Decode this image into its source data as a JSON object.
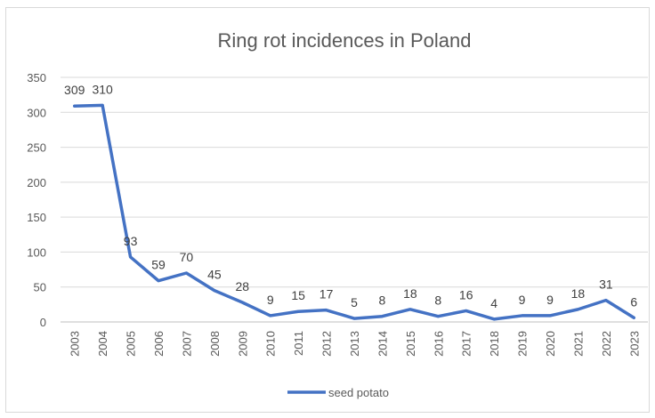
{
  "chart_data": {
    "type": "line",
    "title": "Ring rot incidences in Poland",
    "xlabel": "",
    "ylabel": "",
    "categories": [
      "2003",
      "2004",
      "2005",
      "2006",
      "2007",
      "2008",
      "2009",
      "2010",
      "2011",
      "2012",
      "2013",
      "2014",
      "2015",
      "2016",
      "2017",
      "2018",
      "2019",
      "2020",
      "2021",
      "2022",
      "2023"
    ],
    "series": [
      {
        "name": "seed potato",
        "color": "#4472c4",
        "values": [
          309,
          310,
          93,
          59,
          70,
          45,
          28,
          9,
          15,
          17,
          5,
          8,
          18,
          8,
          16,
          4,
          9,
          9,
          18,
          31,
          6
        ]
      }
    ],
    "ylim": [
      0,
      350
    ],
    "yticks": [
      0,
      50,
      100,
      150,
      200,
      250,
      300,
      350
    ],
    "grid": "horizontal",
    "legend": "bottom",
    "data_labels": true
  }
}
